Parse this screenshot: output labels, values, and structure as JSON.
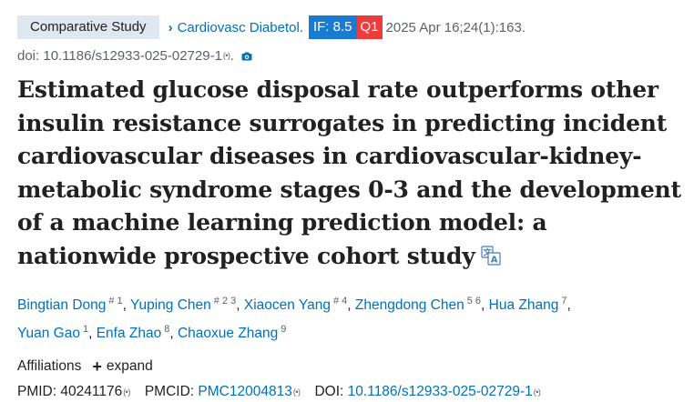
{
  "article_type": "Comparative Study",
  "journal": "Cardiovasc Diabetol.",
  "impact_factor": "IF: 8.5",
  "quartile": "Q1",
  "citation": "2025 Apr 16;24(1):163.",
  "doi_line": "doi: 10.1186/s12933-025-02729-1",
  "title": "Estimated glucose disposal rate outperforms other insulin resistance surrogates in predicting incident cardiovascular diseases in cardiovascular-kidney-metabolic syndrome stages 0-3 and the development of a machine learning prediction model: a nationwide prospective cohort study",
  "authors": [
    {
      "name": "Bingtian Dong",
      "sup": "# 1"
    },
    {
      "name": "Yuping Chen",
      "sup": "# 2 3"
    },
    {
      "name": "Xiaocen Yang",
      "sup": "# 4"
    },
    {
      "name": "Zhengdong Chen",
      "sup": "5 6"
    },
    {
      "name": "Hua Zhang",
      "sup": "7"
    },
    {
      "name": "Yuan Gao",
      "sup": "1"
    },
    {
      "name": "Enfa Zhao",
      "sup": "8"
    },
    {
      "name": "Chaoxue Zhang",
      "sup": "9"
    }
  ],
  "affiliations_label": "Affiliations",
  "expand_label": "expand",
  "ids": {
    "pmid_label": "PMID:",
    "pmid": "40241176",
    "pmcid_label": "PMCID:",
    "pmcid": "PMC12004813",
    "doi_label": "DOI:",
    "doi": "10.1186/s12933-025-02729-1"
  },
  "colors": {
    "link": "#0071bc",
    "if_badge": "#1a7bd2",
    "q_badge": "#ee3b3b",
    "type_bg": "#dfe7f1"
  }
}
